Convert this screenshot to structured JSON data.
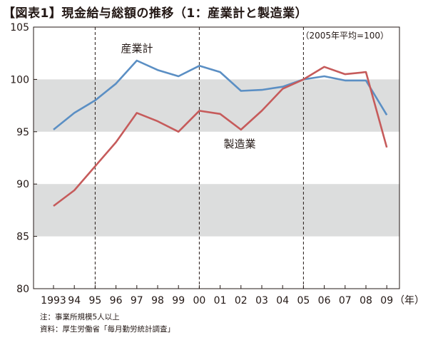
{
  "title": "【図表1】現金給与総額の推移（1：産業計と製造業）",
  "chart_data": {
    "type": "line",
    "x": [
      "1993",
      "94",
      "95",
      "96",
      "97",
      "98",
      "99",
      "00",
      "01",
      "02",
      "03",
      "04",
      "05",
      "06",
      "07",
      "08",
      "09"
    ],
    "x_unit": "（年）",
    "ylim": [
      80,
      105
    ],
    "yticks": [
      80,
      85,
      90,
      95,
      100,
      105
    ],
    "shaded_bands": [
      [
        85,
        90
      ],
      [
        95,
        100
      ]
    ],
    "vertical_dashed_lines_at": [
      "95",
      "00",
      "05"
    ],
    "base_note": "（2005年平均=100）",
    "series": [
      {
        "name": "産業計",
        "color": "#5b8fc4",
        "values": [
          95.2,
          96.8,
          98.0,
          99.6,
          101.8,
          100.9,
          100.3,
          101.3,
          100.7,
          98.9,
          99.0,
          99.3,
          100.0,
          100.3,
          99.9,
          99.9,
          96.6
        ]
      },
      {
        "name": "製造業",
        "color": "#c65b5b",
        "values": [
          87.9,
          89.4,
          91.7,
          94.0,
          96.8,
          96.0,
          95.0,
          97.0,
          96.7,
          95.2,
          97.0,
          99.1,
          100.0,
          101.2,
          100.5,
          100.7,
          93.5
        ]
      }
    ]
  },
  "footer": {
    "note": "注：事業所規模5人以上",
    "source": "資料：厚生労働省「毎月勤労統計調査」"
  }
}
